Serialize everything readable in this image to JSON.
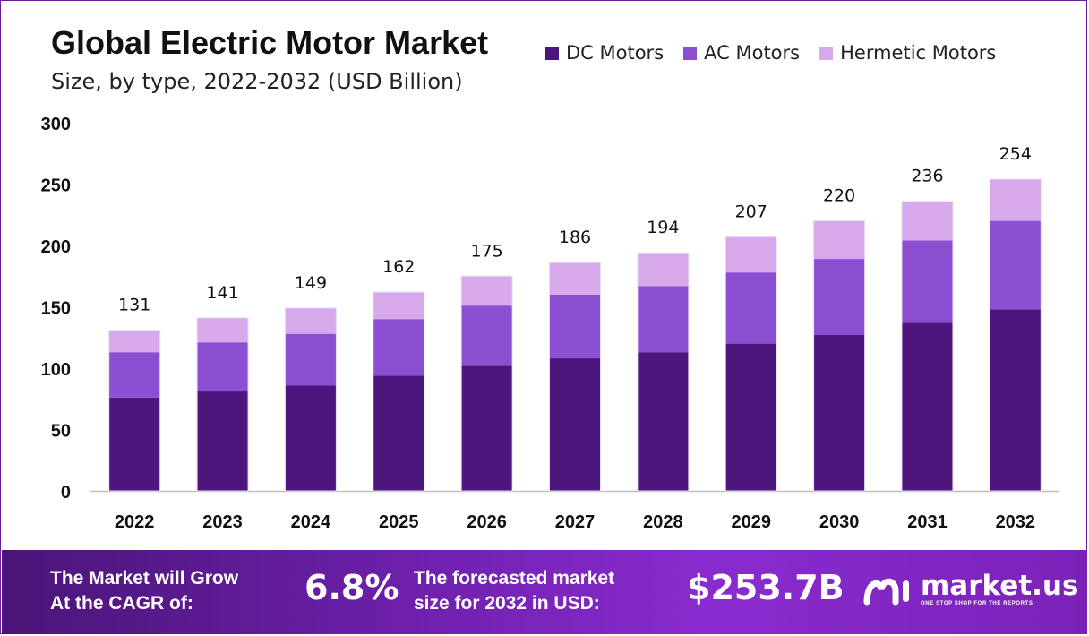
{
  "title": "Global Electric Motor Market",
  "subtitle": "Size, by type, 2022-2032 (USD Billion)",
  "colors": {
    "dc": "#4c167d",
    "ac": "#8c4fd2",
    "hermetic": "#d6aaea"
  },
  "chart_data": {
    "type": "bar",
    "stacked": true,
    "categories": [
      "2022",
      "2023",
      "2024",
      "2025",
      "2026",
      "2027",
      "2028",
      "2029",
      "2030",
      "2031",
      "2032"
    ],
    "series": [
      {
        "name": "DC Motors",
        "values": [
          76,
          81,
          86,
          94,
          102,
          108,
          113,
          120,
          127,
          137,
          148
        ]
      },
      {
        "name": "AC Motors",
        "values": [
          37,
          40,
          42,
          46,
          49,
          52,
          54,
          58,
          62,
          67,
          72
        ]
      },
      {
        "name": "Hermetic Motors",
        "values": [
          18,
          20,
          21,
          22,
          24,
          26,
          27,
          29,
          31,
          32,
          34
        ]
      }
    ],
    "totals": [
      131,
      141,
      149,
      162,
      175,
      186,
      194,
      207,
      220,
      236,
      254
    ],
    "yticks": [
      "300",
      "250",
      "200",
      "150",
      "100",
      "50",
      "0"
    ],
    "ylim": [
      0,
      300
    ],
    "grid": false,
    "legend_position": "top-right"
  },
  "footer": {
    "cagr_label_line1": "The Market will Grow",
    "cagr_label_line2": "At the CAGR of:",
    "cagr_value": "6.8%",
    "forecast_label_line1": "The forecasted market",
    "forecast_label_line2": "size for 2032 in USD:",
    "forecast_value": "$253.7B",
    "brand": "market.us",
    "brand_tagline": "ONE STOP SHOP FOR THE REPORTS"
  }
}
